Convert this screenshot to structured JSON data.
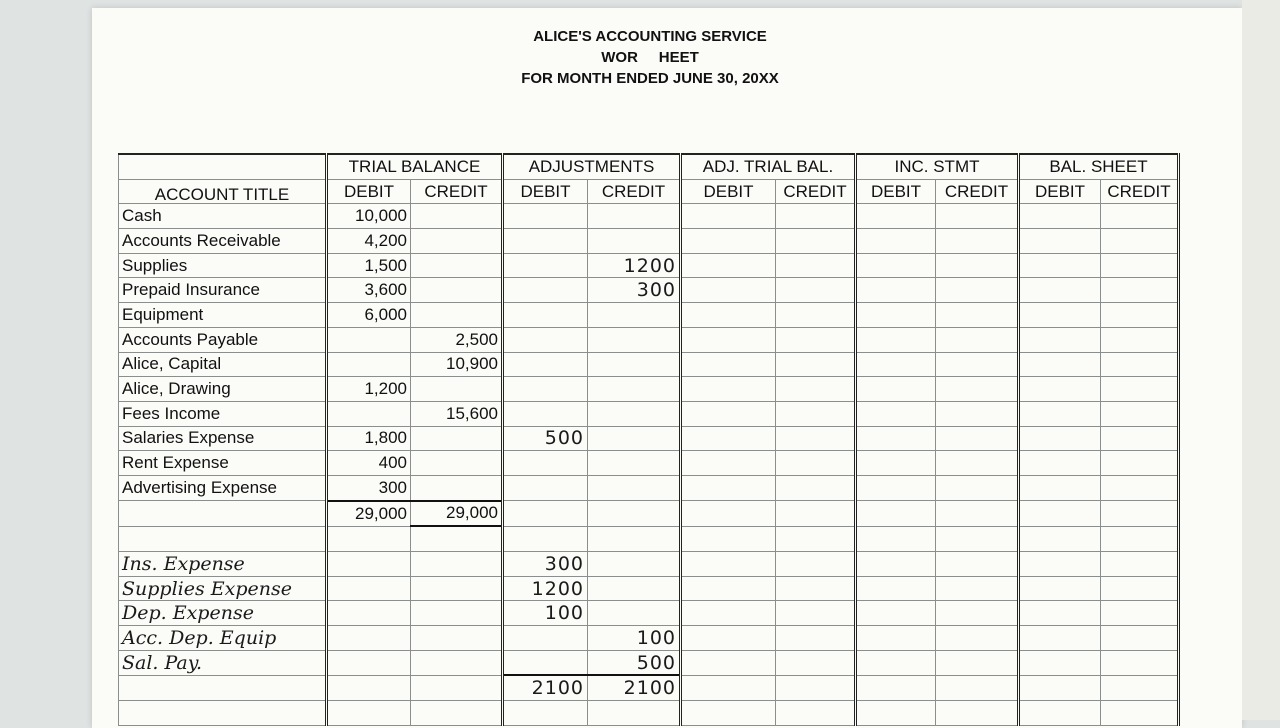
{
  "header": {
    "line1": "ALICE'S ACCOUNTING SERVICE",
    "line2": "WOR     HEET",
    "line3": "FOR MONTH ENDED JUNE 30, 20XX"
  },
  "groups": [
    "TRIAL BALANCE",
    "ADJUSTMENTS",
    "ADJ. TRIAL BAL.",
    "INC. STMT",
    "BAL. SHEET"
  ],
  "account_title_label": "ACCOUNT TITLE",
  "debit_label": "DEBIT",
  "credit_label": "CREDIT",
  "rows": [
    {
      "title": "Cash",
      "tb_debit": "10,000",
      "tb_credit": "",
      "adj_debit": "",
      "adj_credit": ""
    },
    {
      "title": "Accounts Receivable",
      "tb_debit": "4,200",
      "tb_credit": "",
      "adj_debit": "",
      "adj_credit": ""
    },
    {
      "title": "Supplies",
      "tb_debit": "1,500",
      "tb_credit": "",
      "adj_debit": "",
      "adj_credit": "1200"
    },
    {
      "title": "Prepaid Insurance",
      "tb_debit": "3,600",
      "tb_credit": "",
      "adj_debit": "",
      "adj_credit": "300"
    },
    {
      "title": "Equipment",
      "tb_debit": "6,000",
      "tb_credit": "",
      "adj_debit": "",
      "adj_credit": ""
    },
    {
      "title": "Accounts Payable",
      "tb_debit": "",
      "tb_credit": "2,500",
      "adj_debit": "",
      "adj_credit": ""
    },
    {
      "title": "Alice, Capital",
      "tb_debit": "",
      "tb_credit": "10,900",
      "adj_debit": "",
      "adj_credit": ""
    },
    {
      "title": "Alice, Drawing",
      "tb_debit": "1,200",
      "tb_credit": "",
      "adj_debit": "",
      "adj_credit": ""
    },
    {
      "title": "Fees Income",
      "tb_debit": "",
      "tb_credit": "15,600",
      "adj_debit": "",
      "adj_credit": ""
    },
    {
      "title": "Salaries Expense",
      "tb_debit": "1,800",
      "tb_credit": "",
      "adj_debit": "500",
      "adj_credit": ""
    },
    {
      "title": "Rent Expense",
      "tb_debit": "400",
      "tb_credit": "",
      "adj_debit": "",
      "adj_credit": ""
    },
    {
      "title": "Advertising Expense",
      "tb_debit": "300",
      "tb_credit": "",
      "adj_debit": "",
      "adj_credit": ""
    }
  ],
  "tb_totals": {
    "debit": "29,000",
    "credit": "29,000"
  },
  "handwritten_rows": [
    {
      "title": "Ins. Expense",
      "adj_debit": "300",
      "adj_credit": ""
    },
    {
      "title": "Supplies Expense",
      "adj_debit": "1200",
      "adj_credit": ""
    },
    {
      "title": "Dep. Expense",
      "adj_debit": "100",
      "adj_credit": ""
    },
    {
      "title": "Acc. Dep. Equip",
      "adj_debit": "",
      "adj_credit": "100"
    },
    {
      "title": "Sal. Pay.",
      "adj_debit": "",
      "adj_credit": "500"
    }
  ],
  "adj_totals": {
    "debit": "2100",
    "credit": "2100"
  }
}
